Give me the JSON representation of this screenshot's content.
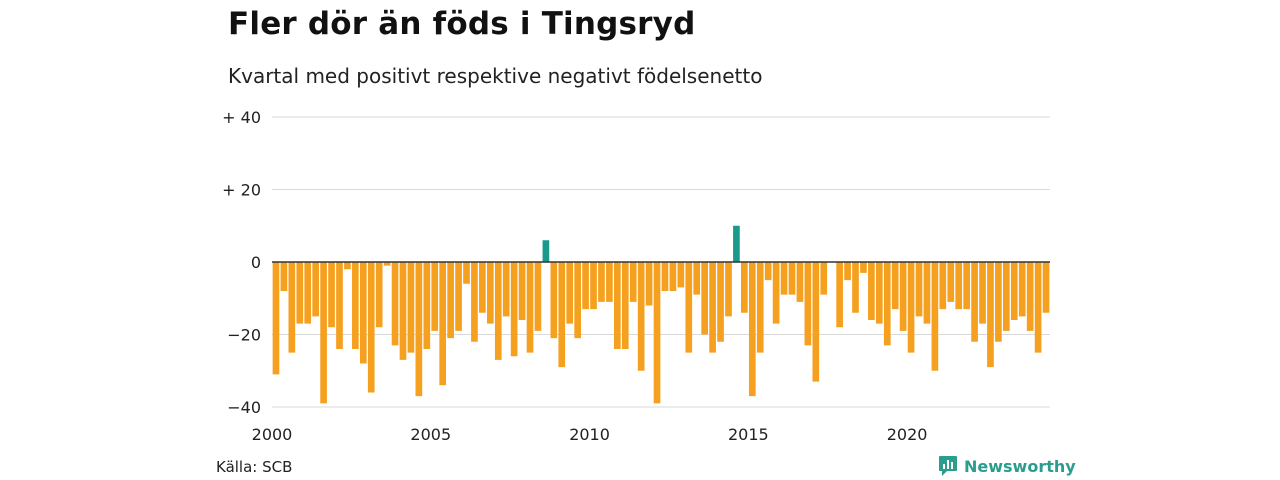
{
  "colors": {
    "positive": "#1a9a8a",
    "negative": "#f5a01f",
    "grid": "#d9d9d9",
    "zero_line": "#333333",
    "brand": "#2a9d8f"
  },
  "chart_data": {
    "type": "bar",
    "title": "Fler dör än föds i Tingsryd",
    "subtitle": "Kvartal med positivt respektive negativt födelsenetto",
    "xlabel": "",
    "ylabel": "",
    "ylim": [
      -40,
      40
    ],
    "yticks": [
      {
        "value": 40,
        "label": "+ 40"
      },
      {
        "value": 20,
        "label": "+ 20"
      },
      {
        "value": 0,
        "label": "0"
      },
      {
        "value": -20,
        "label": "−20"
      },
      {
        "value": -40,
        "label": "−40"
      }
    ],
    "xticks": [
      "2000",
      "2005",
      "2010",
      "2015",
      "2020"
    ],
    "start_year": 2000,
    "periods_per_year": 4,
    "grid": true,
    "values": [
      -31,
      -8,
      -25,
      -17,
      -17,
      -15,
      -39,
      -18,
      -24,
      -2,
      -24,
      -28,
      -36,
      -18,
      -1,
      -23,
      -27,
      -25,
      -37,
      -24,
      -19,
      -34,
      -21,
      -19,
      -6,
      -22,
      -14,
      -17,
      -27,
      -15,
      -26,
      -16,
      -25,
      -19,
      6,
      -21,
      -29,
      -17,
      -21,
      -13,
      -13,
      -11,
      -11,
      -24,
      -24,
      -11,
      -30,
      -12,
      -39,
      -8,
      -8,
      -7,
      -25,
      -9,
      -20,
      -25,
      -22,
      -15,
      10,
      -14,
      -37,
      -25,
      -5,
      -17,
      -9,
      -9,
      -11,
      -23,
      -33,
      -9,
      0,
      -18,
      -5,
      -14,
      -3,
      -16,
      -17,
      -23,
      -13,
      -19,
      -25,
      -15,
      -17,
      -30,
      -13,
      -11,
      -13,
      -13,
      -22,
      -17,
      -29,
      -22,
      -19,
      -16,
      -15,
      -19,
      -25,
      -14
    ]
  },
  "source": "Källa: SCB",
  "logo": {
    "text": "Newsworthy",
    "icon": "newsworthy-logo-icon"
  }
}
